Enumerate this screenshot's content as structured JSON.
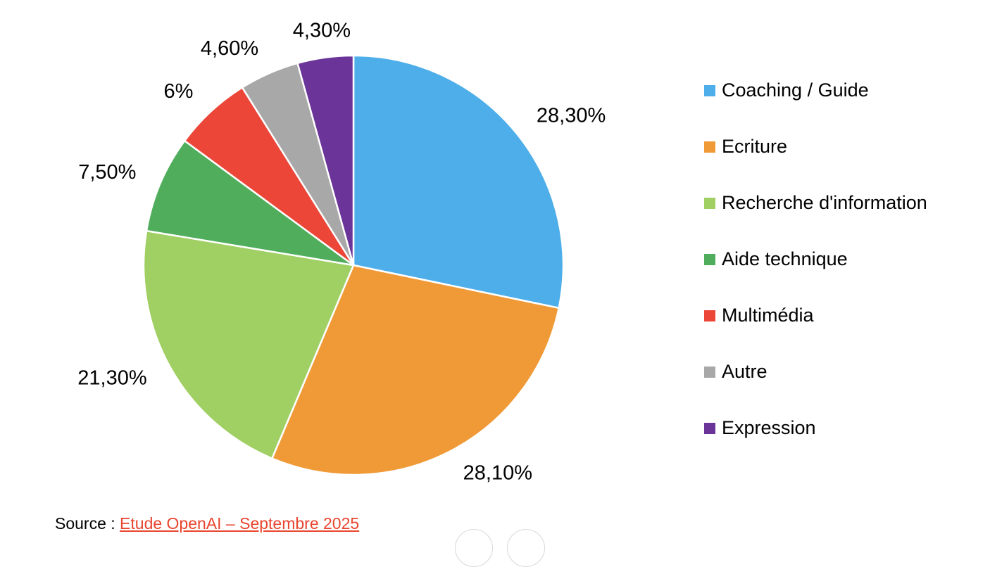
{
  "chart_data": {
    "type": "pie",
    "title": "",
    "categories": [
      "Coaching / Guide",
      "Ecriture",
      "Recherche d'information",
      "Aide technique",
      "Multimédia",
      "Autre",
      "Expression"
    ],
    "values": [
      28.3,
      28.1,
      21.3,
      7.5,
      6,
      4.6,
      4.3
    ],
    "data_labels": [
      "28,30%",
      "28,10%",
      "21,30%",
      "7,50%",
      "6%",
      "4,60%",
      "4,30%"
    ],
    "colors": [
      "#4eaee9",
      "#f09a37",
      "#a0cf63",
      "#50ad5b",
      "#eb4637",
      "#a8a8a8",
      "#6a3499"
    ],
    "start_angle_deg": 0,
    "direction": "clockwise",
    "legend_position": "right"
  },
  "source": {
    "prefix": "Source : ",
    "link_text": "Etude OpenAI – Septembre 2025"
  }
}
